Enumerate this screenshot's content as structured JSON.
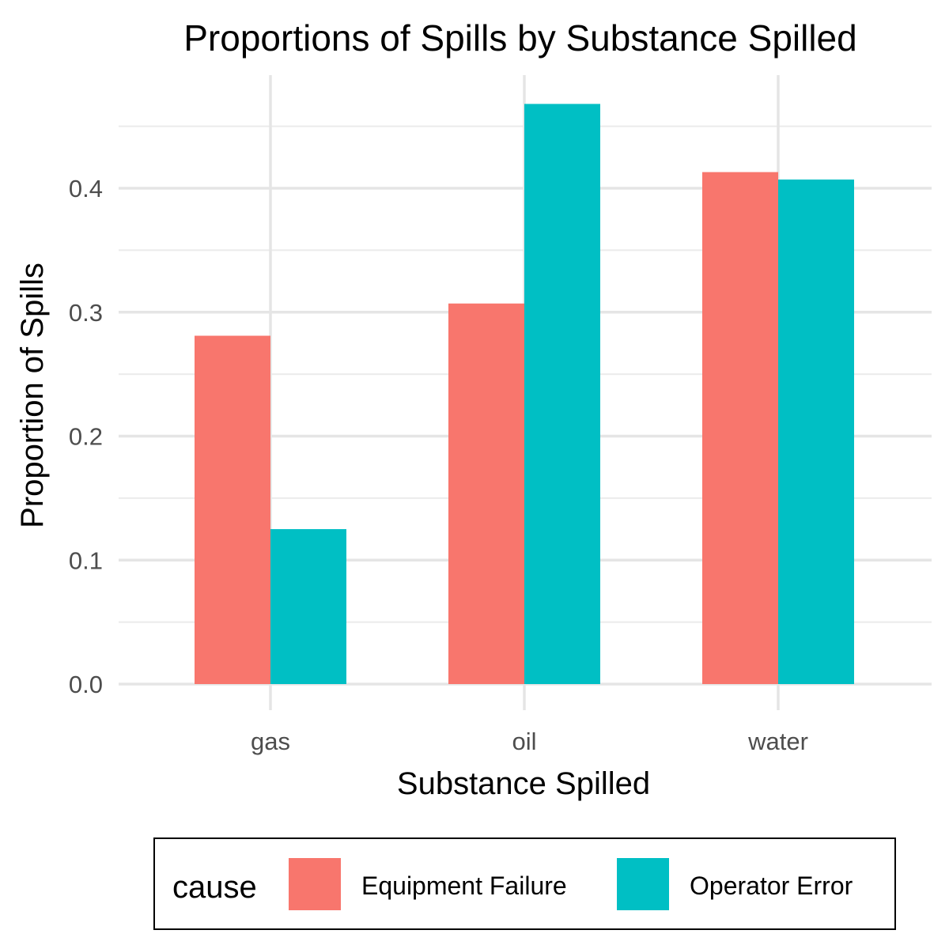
{
  "chart_data": {
    "type": "bar",
    "title": "Proportions of Spills by Substance Spilled",
    "xlabel": "Substance Spilled",
    "ylabel": "Proportion of Spills",
    "categories": [
      "gas",
      "oil",
      "water"
    ],
    "series": [
      {
        "name": "Equipment Failure",
        "color": "#F8766D",
        "values": [
          0.281,
          0.307,
          0.413
        ]
      },
      {
        "name": "Operator Error",
        "color": "#00BFC4",
        "values": [
          0.125,
          0.468,
          0.407
        ]
      }
    ],
    "ylim": [
      0,
      0.48
    ],
    "yticks": [
      "0.0",
      "0.1",
      "0.2",
      "0.3",
      "0.4"
    ],
    "grid": true,
    "legend": {
      "title": "cause",
      "position": "bottom"
    }
  }
}
